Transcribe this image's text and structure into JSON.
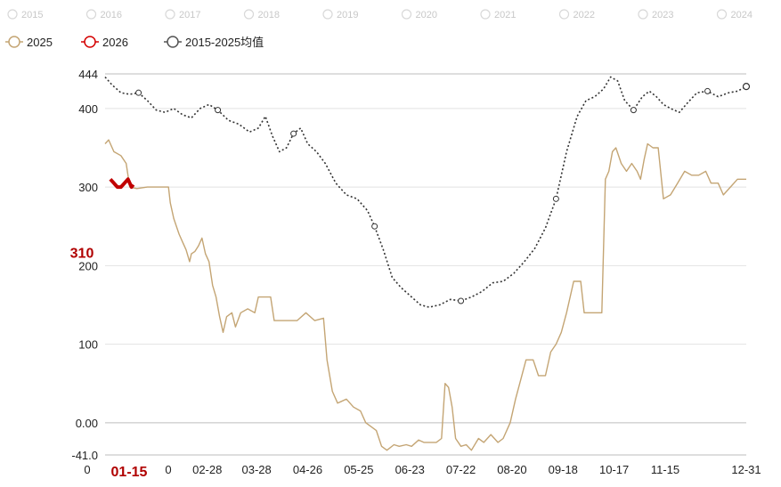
{
  "faded_legend": [
    "2015",
    "2016",
    "2017",
    "2018",
    "2019",
    "2020",
    "2021",
    "2022",
    "2023",
    "2024"
  ],
  "legend": [
    {
      "name": "2025",
      "color": "#c4a574",
      "icon": "ring-marker-icon"
    },
    {
      "name": "2026",
      "color": "#d40000",
      "icon": "ring-marker-icon"
    },
    {
      "name": "2015-2025均值",
      "color": "#555555",
      "icon": "ring-marker-icon"
    }
  ],
  "chart_data": {
    "type": "line",
    "x_axis": {
      "type": "date",
      "range": [
        "01-01",
        "12-31"
      ],
      "tick_labels": [
        "0",
        "01-15",
        "0",
        "02-28",
        "03-28",
        "04-26",
        "05-25",
        "06-23",
        "07-22",
        "08-20",
        "09-18",
        "10-17",
        "11-15",
        "12-31"
      ],
      "tick_days": [
        1,
        15,
        31,
        59,
        87,
        116,
        145,
        174,
        203,
        232,
        261,
        290,
        319,
        365
      ],
      "highlight_tick": "01-15"
    },
    "y_axis": {
      "ylim": [
        -41,
        444
      ],
      "tick_labels": [
        "-41.0",
        "0.00",
        "100",
        "200",
        "300",
        "400",
        "444"
      ],
      "tick_values": [
        -41,
        0,
        100,
        200,
        300,
        400,
        444
      ],
      "highlight_label": "310",
      "highlight_value": 200
    },
    "grid": "horizontal",
    "series": [
      {
        "name": "2025",
        "color": "#c4a574",
        "style": "solid",
        "points": [
          [
            "01-01",
            355
          ],
          [
            "01-03",
            360
          ],
          [
            "01-06",
            345
          ],
          [
            "01-10",
            340
          ],
          [
            "01-13",
            330
          ],
          [
            "01-15",
            300
          ],
          [
            "01-19",
            298
          ],
          [
            "01-25",
            300
          ],
          [
            "02-01",
            300
          ],
          [
            "02-06",
            300
          ],
          [
            "02-07",
            280
          ],
          [
            "02-09",
            260
          ],
          [
            "02-12",
            240
          ],
          [
            "02-14",
            230
          ],
          [
            "02-16",
            220
          ],
          [
            "02-18",
            205
          ],
          [
            "02-19",
            215
          ],
          [
            "02-21",
            218
          ],
          [
            "02-23",
            225
          ],
          [
            "02-25",
            235
          ],
          [
            "02-27",
            215
          ],
          [
            "03-01",
            205
          ],
          [
            "03-03",
            175
          ],
          [
            "03-05",
            160
          ],
          [
            "03-07",
            135
          ],
          [
            "03-09",
            115
          ],
          [
            "03-11",
            135
          ],
          [
            "03-14",
            140
          ],
          [
            "03-16",
            122
          ],
          [
            "03-19",
            140
          ],
          [
            "03-23",
            145
          ],
          [
            "03-27",
            140
          ],
          [
            "03-29",
            160
          ],
          [
            "04-01",
            160
          ],
          [
            "04-05",
            160
          ],
          [
            "04-07",
            130
          ],
          [
            "04-14",
            130
          ],
          [
            "04-20",
            130
          ],
          [
            "04-25",
            140
          ],
          [
            "04-30",
            130
          ],
          [
            "05-05",
            133
          ],
          [
            "05-07",
            80
          ],
          [
            "05-10",
            40
          ],
          [
            "05-13",
            25
          ],
          [
            "05-18",
            30
          ],
          [
            "05-22",
            20
          ],
          [
            "05-26",
            15
          ],
          [
            "05-29",
            0
          ],
          [
            "06-01",
            -5
          ],
          [
            "06-04",
            -10
          ],
          [
            "06-07",
            -30
          ],
          [
            "06-10",
            -35
          ],
          [
            "06-14",
            -28
          ],
          [
            "06-17",
            -30
          ],
          [
            "06-21",
            -28
          ],
          [
            "06-24",
            -30
          ],
          [
            "06-28",
            -22
          ],
          [
            "07-01",
            -25
          ],
          [
            "07-05",
            -25
          ],
          [
            "07-08",
            -25
          ],
          [
            "07-11",
            -20
          ],
          [
            "07-13",
            50
          ],
          [
            "07-15",
            45
          ],
          [
            "07-17",
            20
          ],
          [
            "07-19",
            -20
          ],
          [
            "07-22",
            -30
          ],
          [
            "07-25",
            -28
          ],
          [
            "07-28",
            -35
          ],
          [
            "08-01",
            -20
          ],
          [
            "08-04",
            -25
          ],
          [
            "08-08",
            -15
          ],
          [
            "08-12",
            -25
          ],
          [
            "08-15",
            -20
          ],
          [
            "08-19",
            0
          ],
          [
            "08-22",
            30
          ],
          [
            "08-25",
            55
          ],
          [
            "08-28",
            80
          ],
          [
            "09-01",
            80
          ],
          [
            "09-04",
            60
          ],
          [
            "09-08",
            60
          ],
          [
            "09-11",
            90
          ],
          [
            "09-14",
            100
          ],
          [
            "09-17",
            115
          ],
          [
            "09-20",
            140
          ],
          [
            "09-24",
            180
          ],
          [
            "09-28",
            180
          ],
          [
            "09-30",
            140
          ],
          [
            "10-05",
            140
          ],
          [
            "10-10",
            140
          ],
          [
            "10-12",
            310
          ],
          [
            "10-14",
            320
          ],
          [
            "10-16",
            345
          ],
          [
            "10-18",
            350
          ],
          [
            "10-21",
            330
          ],
          [
            "10-24",
            320
          ],
          [
            "10-27",
            330
          ],
          [
            "10-30",
            320
          ],
          [
            "11-01",
            310
          ],
          [
            "11-03",
            335
          ],
          [
            "11-05",
            355
          ],
          [
            "11-08",
            350
          ],
          [
            "11-11",
            350
          ],
          [
            "11-14",
            285
          ],
          [
            "11-18",
            290
          ],
          [
            "11-22",
            305
          ],
          [
            "11-26",
            320
          ],
          [
            "11-30",
            315
          ],
          [
            "12-04",
            315
          ],
          [
            "12-08",
            320
          ],
          [
            "12-11",
            305
          ],
          [
            "12-15",
            305
          ],
          [
            "12-18",
            290
          ],
          [
            "12-22",
            300
          ],
          [
            "12-26",
            310
          ],
          [
            "12-31",
            310
          ]
        ]
      },
      {
        "name": "2026",
        "color": "#c00000",
        "style": "thick",
        "points": [
          [
            "01-04",
            310
          ],
          [
            "01-06",
            305
          ],
          [
            "01-08",
            300
          ],
          [
            "01-10",
            300
          ],
          [
            "01-12",
            305
          ],
          [
            "01-14",
            310
          ],
          [
            "01-15",
            305
          ],
          [
            "01-16",
            300
          ],
          [
            "01-17",
            303
          ]
        ]
      },
      {
        "name": "2015-2025均值",
        "color": "#333333",
        "style": "dotted",
        "points": [
          [
            "01-01",
            440
          ],
          [
            "01-05",
            430
          ],
          [
            "01-10",
            420
          ],
          [
            "01-15",
            418
          ],
          [
            "01-20",
            420
          ],
          [
            "01-25",
            410
          ],
          [
            "01-30",
            398
          ],
          [
            "02-04",
            395
          ],
          [
            "02-09",
            400
          ],
          [
            "02-14",
            392
          ],
          [
            "02-19",
            388
          ],
          [
            "02-24",
            400
          ],
          [
            "03-01",
            405
          ],
          [
            "03-06",
            398
          ],
          [
            "03-12",
            385
          ],
          [
            "03-18",
            380
          ],
          [
            "03-24",
            370
          ],
          [
            "03-29",
            375
          ],
          [
            "04-02",
            390
          ],
          [
            "04-06",
            365
          ],
          [
            "04-10",
            345
          ],
          [
            "04-14",
            350
          ],
          [
            "04-18",
            368
          ],
          [
            "04-22",
            375
          ],
          [
            "04-26",
            355
          ],
          [
            "05-01",
            345
          ],
          [
            "05-06",
            330
          ],
          [
            "05-12",
            305
          ],
          [
            "05-18",
            290
          ],
          [
            "05-24",
            285
          ],
          [
            "05-30",
            270
          ],
          [
            "06-03",
            250
          ],
          [
            "06-08",
            220
          ],
          [
            "06-13",
            185
          ],
          [
            "06-18",
            172
          ],
          [
            "06-24",
            160
          ],
          [
            "06-29",
            150
          ],
          [
            "07-04",
            147
          ],
          [
            "07-10",
            150
          ],
          [
            "07-16",
            157
          ],
          [
            "07-22",
            155
          ],
          [
            "07-28",
            160
          ],
          [
            "08-03",
            167
          ],
          [
            "08-09",
            178
          ],
          [
            "08-15",
            180
          ],
          [
            "08-21",
            190
          ],
          [
            "08-27",
            205
          ],
          [
            "09-02",
            222
          ],
          [
            "09-08",
            248
          ],
          [
            "09-14",
            285
          ],
          [
            "09-20",
            345
          ],
          [
            "09-26",
            390
          ],
          [
            "10-01",
            410
          ],
          [
            "10-06",
            415
          ],
          [
            "10-11",
            425
          ],
          [
            "10-15",
            440
          ],
          [
            "10-19",
            435
          ],
          [
            "10-23",
            410
          ],
          [
            "10-28",
            398
          ],
          [
            "11-02",
            415
          ],
          [
            "11-06",
            422
          ],
          [
            "11-10",
            415
          ],
          [
            "11-14",
            405
          ],
          [
            "11-18",
            400
          ],
          [
            "11-23",
            395
          ],
          [
            "11-28",
            408
          ],
          [
            "12-03",
            420
          ],
          [
            "12-09",
            422
          ],
          [
            "12-15",
            415
          ],
          [
            "12-21",
            420
          ],
          [
            "12-26",
            422
          ],
          [
            "12-31",
            428
          ]
        ]
      }
    ]
  }
}
